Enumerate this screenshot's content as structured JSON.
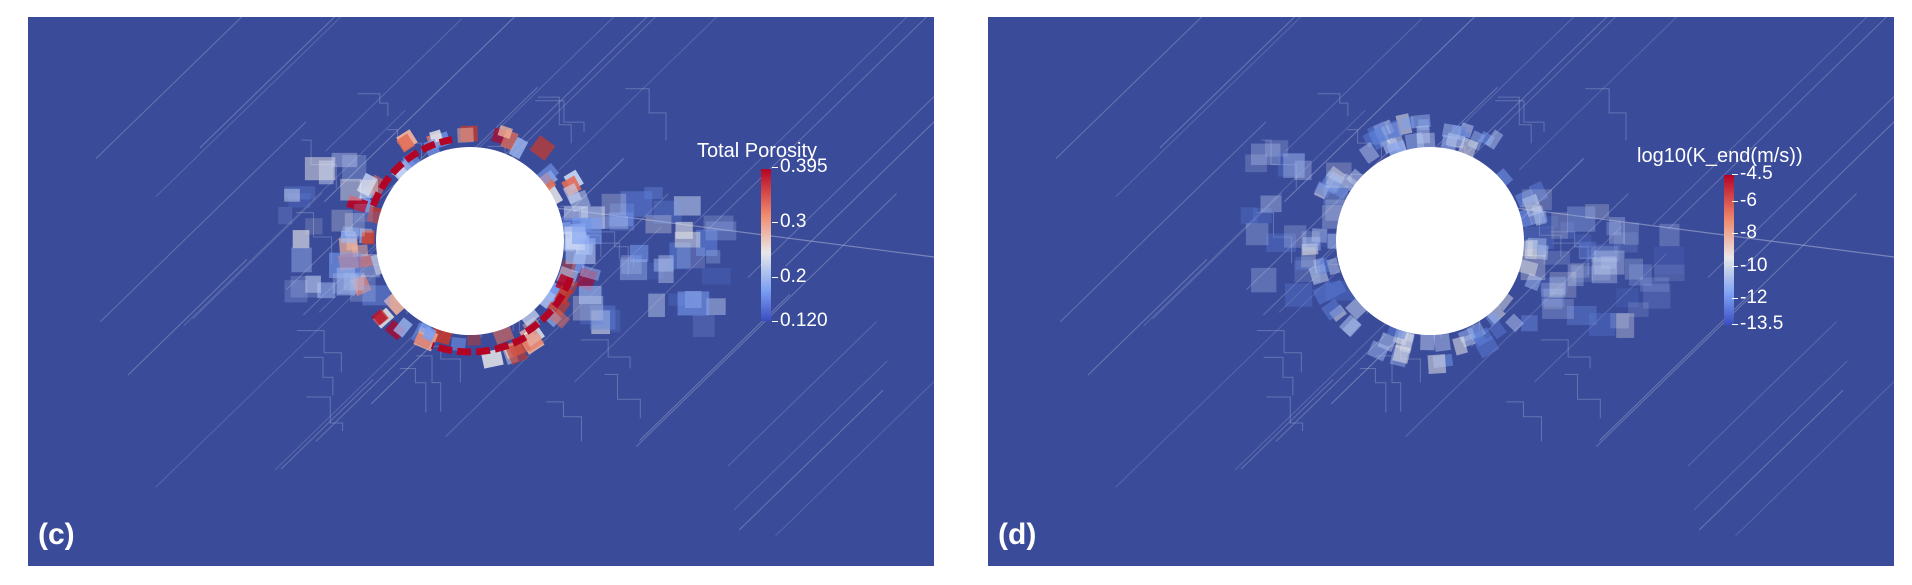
{
  "panels": [
    {
      "label": "(c)",
      "colorbar": {
        "title": "Total Porosity",
        "ticks": [
          "0.395",
          "0.3",
          "0.2",
          "0.120"
        ],
        "range": [
          0.12,
          0.395
        ]
      }
    },
    {
      "label": "(d)",
      "colorbar": {
        "title": "log10(K_end(m/s))",
        "ticks": [
          "-4.5",
          "-6",
          "-8",
          "-10",
          "-12",
          "-13.5"
        ],
        "range": [
          -13.5,
          -4.5
        ]
      }
    }
  ],
  "colors": {
    "background": "#3a4b9a",
    "high": "#b40426",
    "mid": "#dddddd",
    "low": "#3b4cc0"
  }
}
